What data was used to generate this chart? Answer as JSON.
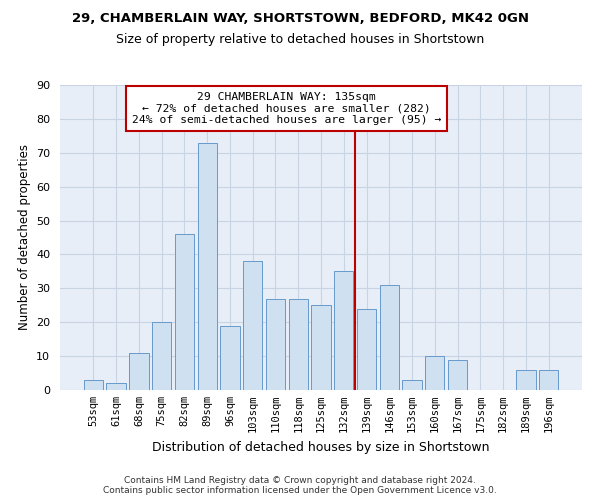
{
  "title1": "29, CHAMBERLAIN WAY, SHORTSTOWN, BEDFORD, MK42 0GN",
  "title2": "Size of property relative to detached houses in Shortstown",
  "xlabel": "Distribution of detached houses by size in Shortstown",
  "ylabel": "Number of detached properties",
  "categories": [
    "53sqm",
    "61sqm",
    "68sqm",
    "75sqm",
    "82sqm",
    "89sqm",
    "96sqm",
    "103sqm",
    "110sqm",
    "118sqm",
    "125sqm",
    "132sqm",
    "139sqm",
    "146sqm",
    "153sqm",
    "160sqm",
    "167sqm",
    "175sqm",
    "182sqm",
    "189sqm",
    "196sqm"
  ],
  "values": [
    3,
    2,
    11,
    20,
    46,
    73,
    19,
    38,
    27,
    27,
    25,
    35,
    24,
    31,
    3,
    10,
    9,
    0,
    0,
    6,
    6
  ],
  "bar_color": "#cfe0f0",
  "bar_edge_color": "#6699cc",
  "grid_color": "#c8d4e4",
  "background_color": "#e8eef8",
  "vline_color": "#bb0000",
  "annotation_text": "29 CHAMBERLAIN WAY: 135sqm\n← 72% of detached houses are smaller (282)\n24% of semi-detached houses are larger (95) →",
  "annotation_box_color": "#bb0000",
  "footer": "Contains HM Land Registry data © Crown copyright and database right 2024.\nContains public sector information licensed under the Open Government Licence v3.0.",
  "ylim": [
    0,
    90
  ],
  "yticks": [
    0,
    10,
    20,
    30,
    40,
    50,
    60,
    70,
    80,
    90
  ]
}
